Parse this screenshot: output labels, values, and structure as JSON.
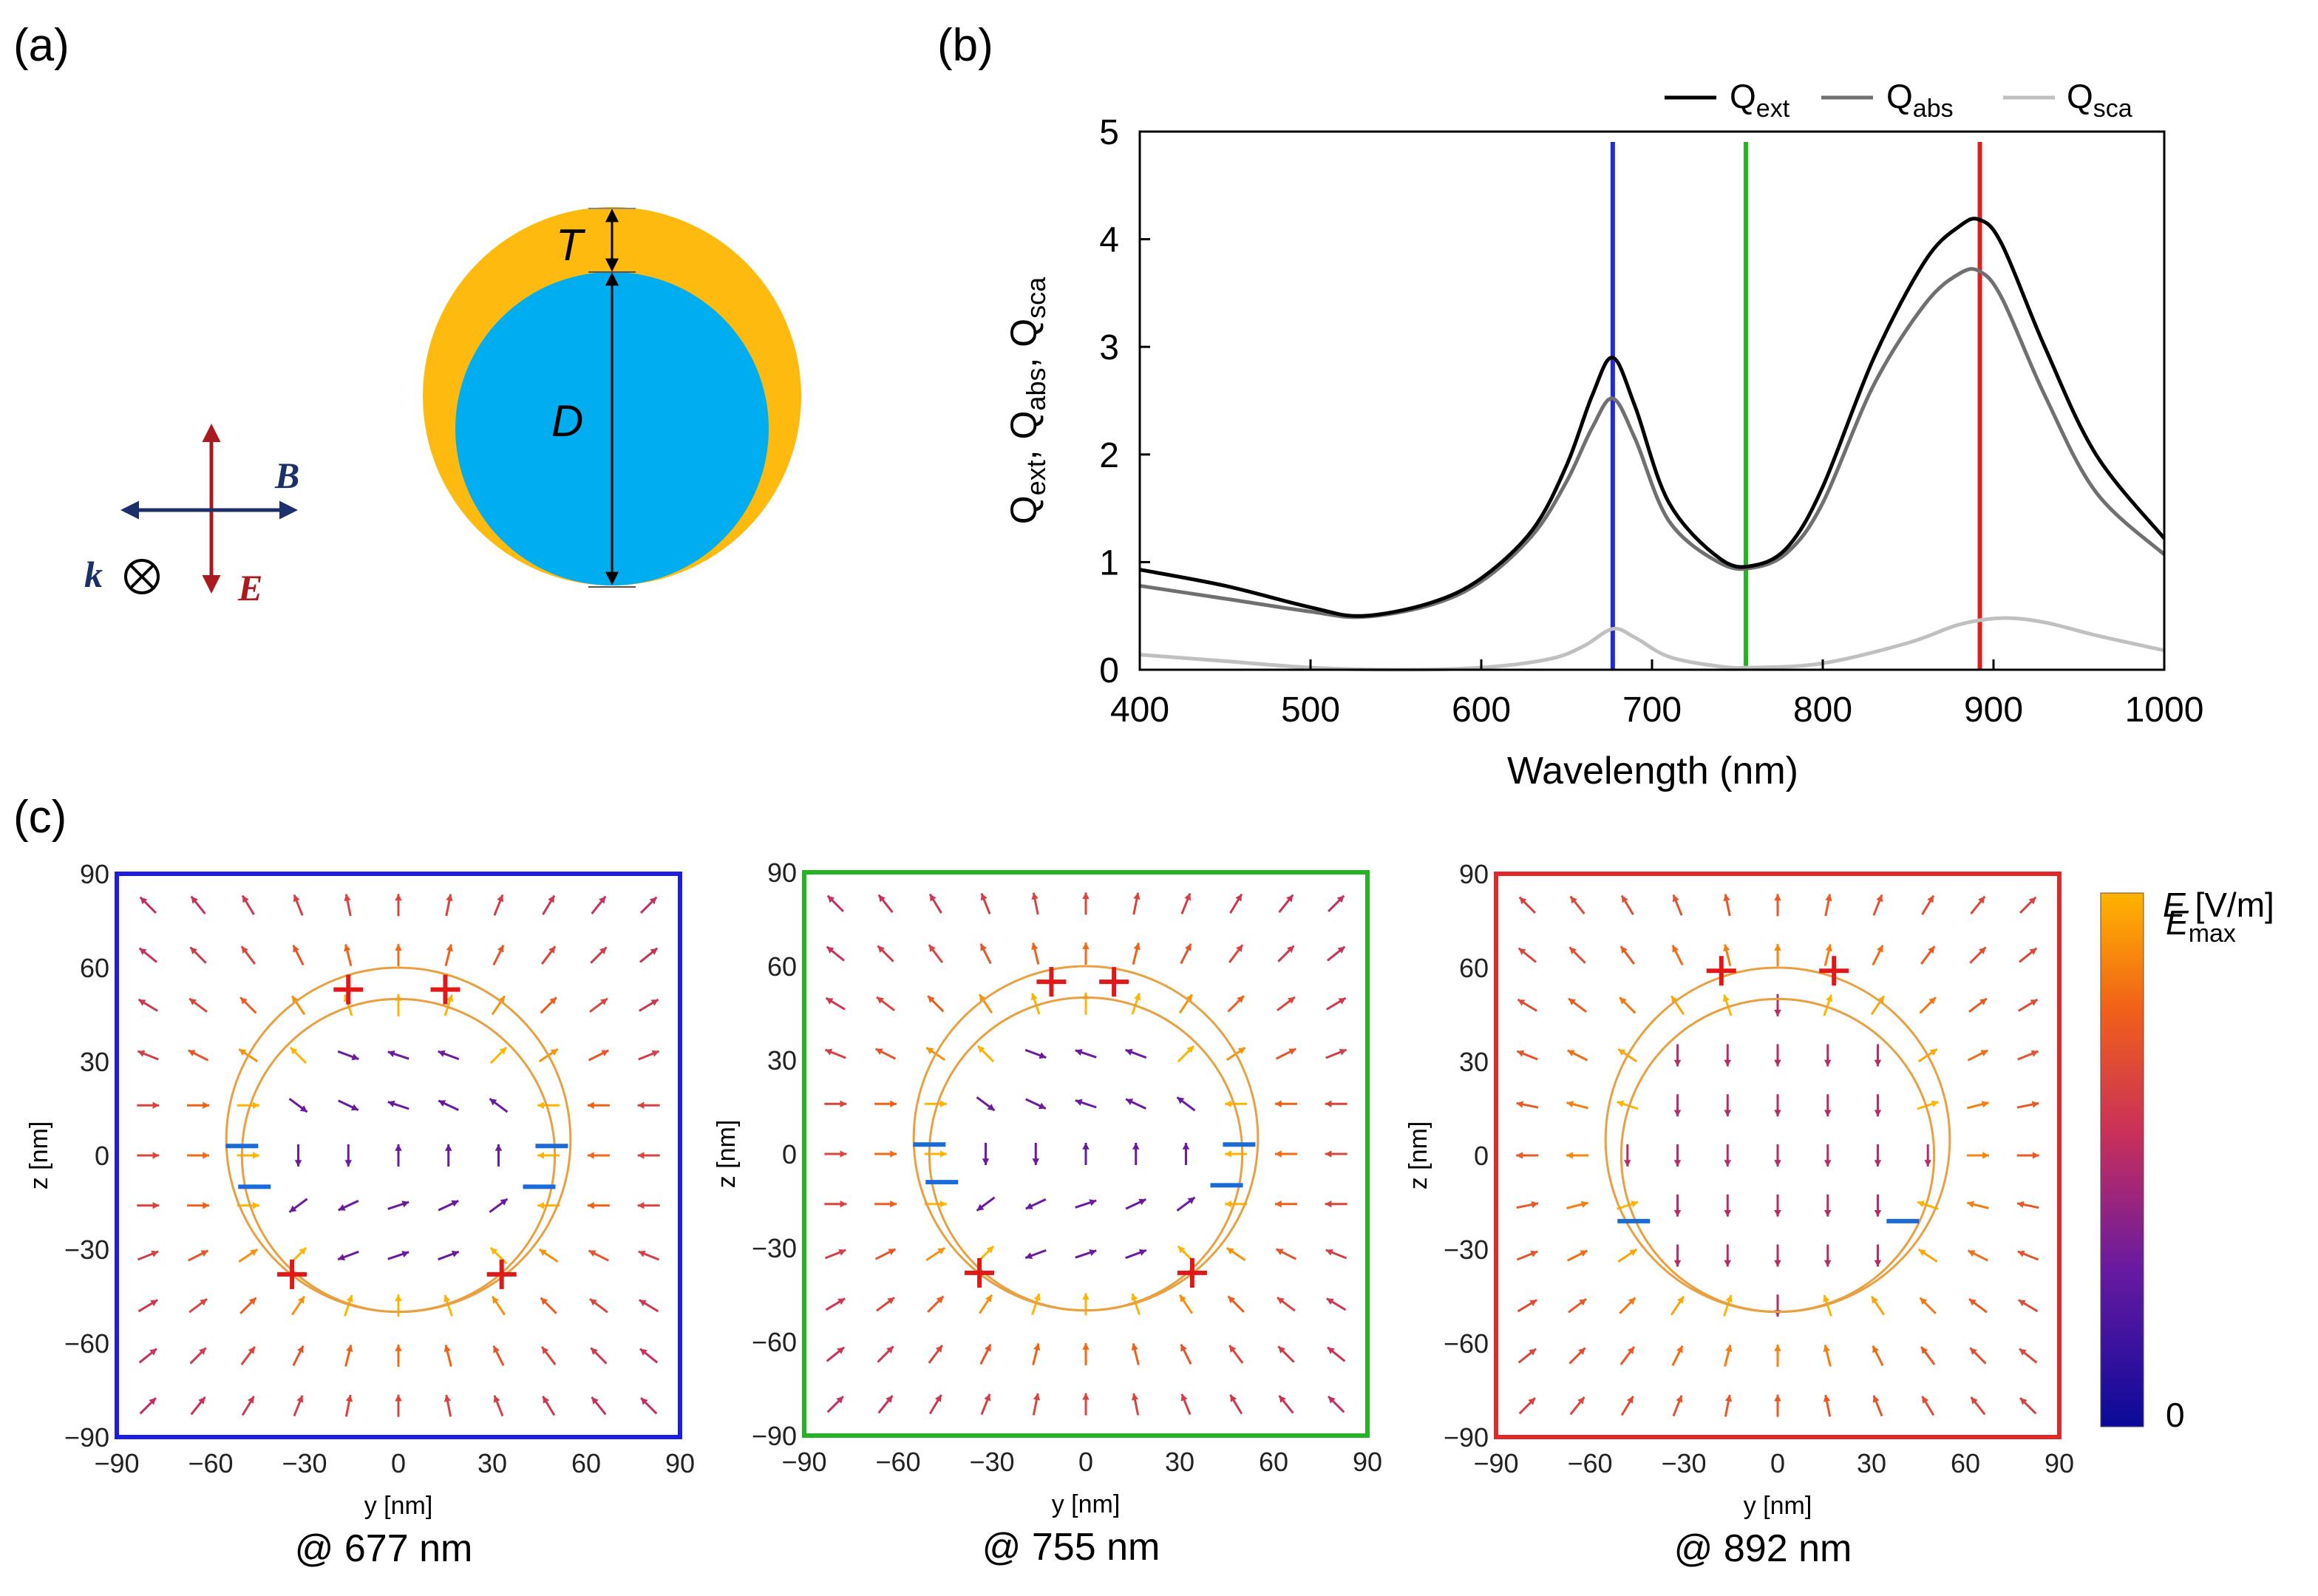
{
  "panel_labels": {
    "a": "(a)",
    "b": "(b)",
    "c": "(c)"
  },
  "panel_a": {
    "shell_label": "T",
    "core_label": "D",
    "b_label": "B",
    "k_label": "k",
    "e_label": "E",
    "colors": {
      "shell": "#FFBA0F",
      "core": "#00AEEF",
      "e_arrow": "#AA1B1F",
      "b_arrow": "#1B2F6B"
    }
  },
  "chart_data": {
    "type": "line",
    "title": "",
    "xlabel": "Wavelength (nm)",
    "ylabel": "Q_ext, Q_abs, Q_sca",
    "xlim": [
      400,
      1000
    ],
    "ylim": [
      0,
      5
    ],
    "x_ticks": [
      400,
      500,
      600,
      700,
      800,
      900,
      1000
    ],
    "y_ticks": [
      0,
      1,
      2,
      3,
      4,
      5
    ],
    "legend": [
      "Q_ext",
      "Q_abs",
      "Q_sca"
    ],
    "legend_position": "top-right",
    "series": [
      {
        "name": "Q_ext",
        "color": "#000000",
        "x": [
          400,
          450,
          500,
          530,
          570,
          600,
          630,
          650,
          665,
          677,
          690,
          710,
          740,
          760,
          780,
          800,
          830,
          860,
          880,
          892,
          905,
          930,
          960,
          1000
        ],
        "y": [
          0.93,
          0.78,
          0.58,
          0.5,
          0.62,
          0.85,
          1.3,
          1.9,
          2.55,
          2.9,
          2.45,
          1.55,
          1.03,
          0.97,
          1.15,
          1.7,
          2.9,
          3.8,
          4.12,
          4.18,
          3.95,
          3.0,
          2.0,
          1.22
        ]
      },
      {
        "name": "Q_abs",
        "color": "#707070",
        "x": [
          400,
          450,
          500,
          530,
          570,
          600,
          630,
          650,
          665,
          677,
          690,
          710,
          740,
          760,
          780,
          800,
          830,
          860,
          880,
          892,
          905,
          930,
          960,
          1000
        ],
        "y": [
          0.78,
          0.66,
          0.54,
          0.49,
          0.6,
          0.82,
          1.25,
          1.75,
          2.25,
          2.52,
          2.15,
          1.38,
          0.99,
          0.95,
          1.1,
          1.55,
          2.65,
          3.4,
          3.68,
          3.7,
          3.45,
          2.55,
          1.65,
          1.07
        ]
      },
      {
        "name": "Q_sca",
        "color": "#C0C0C0",
        "x": [
          400,
          450,
          500,
          550,
          600,
          640,
          660,
          677,
          690,
          710,
          740,
          760,
          800,
          850,
          880,
          905,
          930,
          960,
          1000
        ],
        "y": [
          0.14,
          0.08,
          0.02,
          0.0,
          0.02,
          0.1,
          0.22,
          0.38,
          0.3,
          0.12,
          0.03,
          0.02,
          0.06,
          0.25,
          0.42,
          0.48,
          0.44,
          0.32,
          0.18
        ]
      }
    ],
    "markers": [
      {
        "x": 677,
        "color": "#1f2bd8"
      },
      {
        "x": 755,
        "color": "#22b422"
      },
      {
        "x": 892,
        "color": "#e02020"
      }
    ]
  },
  "field_maps": [
    {
      "caption": "@ 677 nm",
      "frame_color": "#1d1de0",
      "plus_count": "4",
      "minus_count": "4"
    },
    {
      "caption": "@ 755 nm",
      "frame_color": "#22b422",
      "plus_count": "4",
      "minus_count": "4"
    },
    {
      "caption": "@ 892 nm",
      "frame_color": "#e02828",
      "plus_count": "2",
      "minus_count": "2"
    }
  ],
  "field_axes": {
    "xlabel": "y [nm]",
    "ylabel": "z [nm]",
    "ticks": [
      "-90",
      "-60",
      "-30",
      "0",
      "30",
      "60",
      "90"
    ]
  },
  "colorbar": {
    "title": "E [V/m]",
    "max_label": "E",
    "max_sub": "max",
    "min_label": "0",
    "colors": [
      "#0a0a9a",
      "#6a1aa0",
      "#c8305a",
      "#f06018",
      "#ffb400"
    ]
  }
}
